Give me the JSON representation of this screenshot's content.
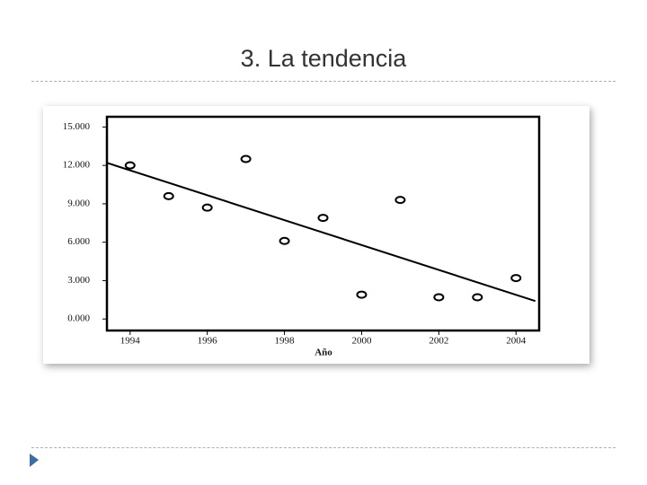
{
  "title": "3. La tendencia",
  "chart_data": {
    "type": "scatter",
    "xlabel": "Año",
    "x": [
      1994,
      1995,
      1996,
      1997,
      1998,
      1999,
      2000,
      2001,
      2002,
      2003,
      2004
    ],
    "values": [
      12000,
      9600,
      8700,
      12500,
      6100,
      7900,
      1900,
      9300,
      1700,
      1700,
      3200
    ],
    "color": "#000000",
    "trendline": {
      "x": [
        1993.4,
        2004.5
      ],
      "values": [
        12200,
        1400
      ]
    },
    "xlim": [
      1993.4,
      2004.6
    ],
    "ylim": [
      -900,
      15800
    ],
    "xticks": [
      1994,
      1996,
      1998,
      2000,
      2002,
      2004
    ],
    "yticks": [
      {
        "value": 0,
        "label": "0.000"
      },
      {
        "value": 3000,
        "label": "3.000"
      },
      {
        "value": 6000,
        "label": "6.000"
      },
      {
        "value": 9000,
        "label": "9.000"
      },
      {
        "value": 12000,
        "label": "12.000"
      },
      {
        "value": 15000,
        "label": "15.000"
      }
    ]
  }
}
